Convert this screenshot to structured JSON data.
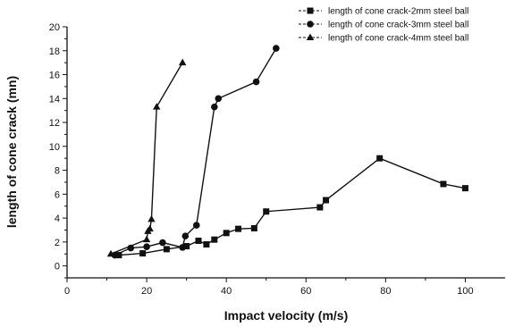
{
  "chart_data": {
    "type": "line",
    "xlabel": "Impact velocity (m/s)",
    "ylabel": "length of cone crack (mn)",
    "xlim": [
      0,
      110
    ],
    "ylim": [
      -1,
      20
    ],
    "xticks": [
      0,
      20,
      40,
      60,
      80,
      100
    ],
    "yticks": [
      0,
      2,
      4,
      6,
      8,
      10,
      12,
      14,
      16,
      18,
      20
    ],
    "grid": false,
    "legend_position": "top-right",
    "series": [
      {
        "name": "length of cone crack-2mm steel ball",
        "marker": "square",
        "line_style": "solid",
        "x": [
          13,
          19,
          25,
          30,
          33,
          35,
          37,
          40,
          43,
          47,
          50,
          63.5,
          65,
          78.5,
          94.5,
          100
        ],
        "y": [
          0.9,
          1.05,
          1.4,
          1.65,
          2.1,
          1.8,
          2.2,
          2.75,
          3.1,
          3.15,
          4.55,
          4.9,
          5.5,
          9.0,
          6.85,
          6.5
        ]
      },
      {
        "name": "length of cone crack-3mm steel ball",
        "marker": "circle",
        "line_style": "solid",
        "x": [
          12,
          16,
          20,
          24,
          29,
          29.7,
          32.5,
          37,
          38,
          47.5,
          52.5
        ],
        "y": [
          0.9,
          1.5,
          1.6,
          1.95,
          1.55,
          2.5,
          3.4,
          13.3,
          14.0,
          15.4,
          18.2
        ]
      },
      {
        "name": "length of cone crack-4mm steel ball",
        "marker": "triangle",
        "line_style": "solid",
        "x": [
          11,
          20,
          20.3,
          20.8,
          21.2,
          22.5,
          29
        ],
        "y": [
          1.0,
          2.2,
          2.9,
          3.1,
          3.9,
          13.3,
          17.0
        ]
      }
    ]
  }
}
